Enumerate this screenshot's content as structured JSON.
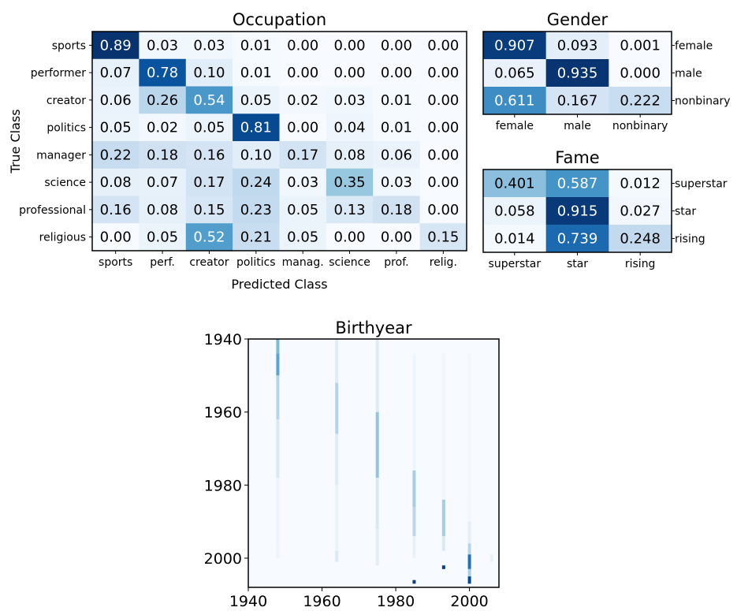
{
  "chart_data": [
    {
      "type": "heatmap",
      "title": "Occupation",
      "xlabel": "Predicted Class",
      "ylabel": "True Class",
      "rows": [
        "sports",
        "performer",
        "creator",
        "politics",
        "manager",
        "science",
        "professional",
        "religious"
      ],
      "cols": [
        "sports",
        "perf.",
        "creator",
        "politics",
        "manag.",
        "science",
        "prof.",
        "relig."
      ],
      "values": [
        [
          0.89,
          0.03,
          0.03,
          0.01,
          0.0,
          0.0,
          0.0,
          0.0
        ],
        [
          0.07,
          0.78,
          0.1,
          0.01,
          0.0,
          0.0,
          0.0,
          0.0
        ],
        [
          0.06,
          0.26,
          0.54,
          0.05,
          0.02,
          0.03,
          0.01,
          0.0
        ],
        [
          0.05,
          0.02,
          0.05,
          0.81,
          0.0,
          0.04,
          0.01,
          0.0
        ],
        [
          0.22,
          0.18,
          0.16,
          0.1,
          0.17,
          0.08,
          0.06,
          0.0
        ],
        [
          0.08,
          0.07,
          0.17,
          0.24,
          0.03,
          0.35,
          0.03,
          0.0
        ],
        [
          0.16,
          0.08,
          0.15,
          0.23,
          0.05,
          0.13,
          0.18,
          0.0
        ],
        [
          0.0,
          0.05,
          0.52,
          0.21,
          0.05,
          0.0,
          0.0,
          0.15
        ]
      ],
      "colormap": "Blues"
    },
    {
      "type": "heatmap",
      "title": "Gender",
      "rows": [
        "female",
        "male",
        "nonbinary"
      ],
      "cols": [
        "female",
        "male",
        "nonbinary"
      ],
      "values": [
        [
          0.907,
          0.093,
          0.001
        ],
        [
          0.065,
          0.935,
          0.0
        ],
        [
          0.611,
          0.167,
          0.222
        ]
      ],
      "colormap": "Blues"
    },
    {
      "type": "heatmap",
      "title": "Fame",
      "rows": [
        "superstar",
        "star",
        "rising"
      ],
      "cols": [
        "superstar",
        "star",
        "rising"
      ],
      "values": [
        [
          0.401,
          0.587,
          0.012
        ],
        [
          0.058,
          0.915,
          0.027
        ],
        [
          0.014,
          0.739,
          0.248
        ]
      ],
      "colormap": "Blues"
    },
    {
      "type": "heatmap",
      "title": "Birthyear",
      "xlim": [
        1940,
        2008
      ],
      "ylim": [
        1940,
        2008
      ],
      "xticks": [
        1940,
        1960,
        1980,
        2000
      ],
      "yticks": [
        1940,
        1960,
        1980,
        2000
      ],
      "colormap": "Blues",
      "columns": [
        {
          "x": 1948,
          "segments": [
            {
              "y0": 1940,
              "y1": 1944,
              "v": 0.45
            },
            {
              "y0": 1944,
              "y1": 1950,
              "v": 0.55
            },
            {
              "y0": 1950,
              "y1": 1962,
              "v": 0.3
            },
            {
              "y0": 1962,
              "y1": 1978,
              "v": 0.15
            },
            {
              "y0": 1978,
              "y1": 1996,
              "v": 0.06
            },
            {
              "y0": 1996,
              "y1": 2000,
              "v": 0.05
            }
          ]
        },
        {
          "x": 1964,
          "segments": [
            {
              "y0": 1940,
              "y1": 1952,
              "v": 0.12
            },
            {
              "y0": 1952,
              "y1": 1966,
              "v": 0.3
            },
            {
              "y0": 1966,
              "y1": 1980,
              "v": 0.12
            },
            {
              "y0": 1980,
              "y1": 1998,
              "v": 0.06
            },
            {
              "y0": 1998,
              "y1": 2001,
              "v": 0.14
            }
          ]
        },
        {
          "x": 1975,
          "segments": [
            {
              "y0": 1940,
              "y1": 1960,
              "v": 0.12
            },
            {
              "y0": 1960,
              "y1": 1978,
              "v": 0.4
            },
            {
              "y0": 1978,
              "y1": 1992,
              "v": 0.15
            },
            {
              "y0": 1992,
              "y1": 2002,
              "v": 0.1
            }
          ]
        },
        {
          "x": 1985,
          "segments": [
            {
              "y0": 1944,
              "y1": 1976,
              "v": 0.05
            },
            {
              "y0": 1976,
              "y1": 1986,
              "v": 0.35
            },
            {
              "y0": 1986,
              "y1": 1994,
              "v": 0.28
            },
            {
              "y0": 1994,
              "y1": 2000,
              "v": 0.07
            },
            {
              "y0": 2006,
              "y1": 2007,
              "v": 0.95
            }
          ]
        },
        {
          "x": 1993,
          "segments": [
            {
              "y0": 1944,
              "y1": 1984,
              "v": 0.04
            },
            {
              "y0": 1984,
              "y1": 1994,
              "v": 0.35
            },
            {
              "y0": 1994,
              "y1": 1998,
              "v": 0.15
            },
            {
              "y0": 2002,
              "y1": 2003,
              "v": 0.95
            }
          ]
        },
        {
          "x": 2000,
          "segments": [
            {
              "y0": 1944,
              "y1": 1990,
              "v": 0.03
            },
            {
              "y0": 1990,
              "y1": 1996,
              "v": 0.1
            },
            {
              "y0": 1996,
              "y1": 1999,
              "v": 0.3
            },
            {
              "y0": 1999,
              "y1": 2003,
              "v": 0.75
            },
            {
              "y0": 2003,
              "y1": 2005,
              "v": 0.35
            },
            {
              "y0": 2005,
              "y1": 2007,
              "v": 0.9
            }
          ]
        },
        {
          "x": 2006,
          "segments": [
            {
              "y0": 1999,
              "y1": 2001,
              "v": 0.08
            }
          ]
        }
      ]
    }
  ]
}
